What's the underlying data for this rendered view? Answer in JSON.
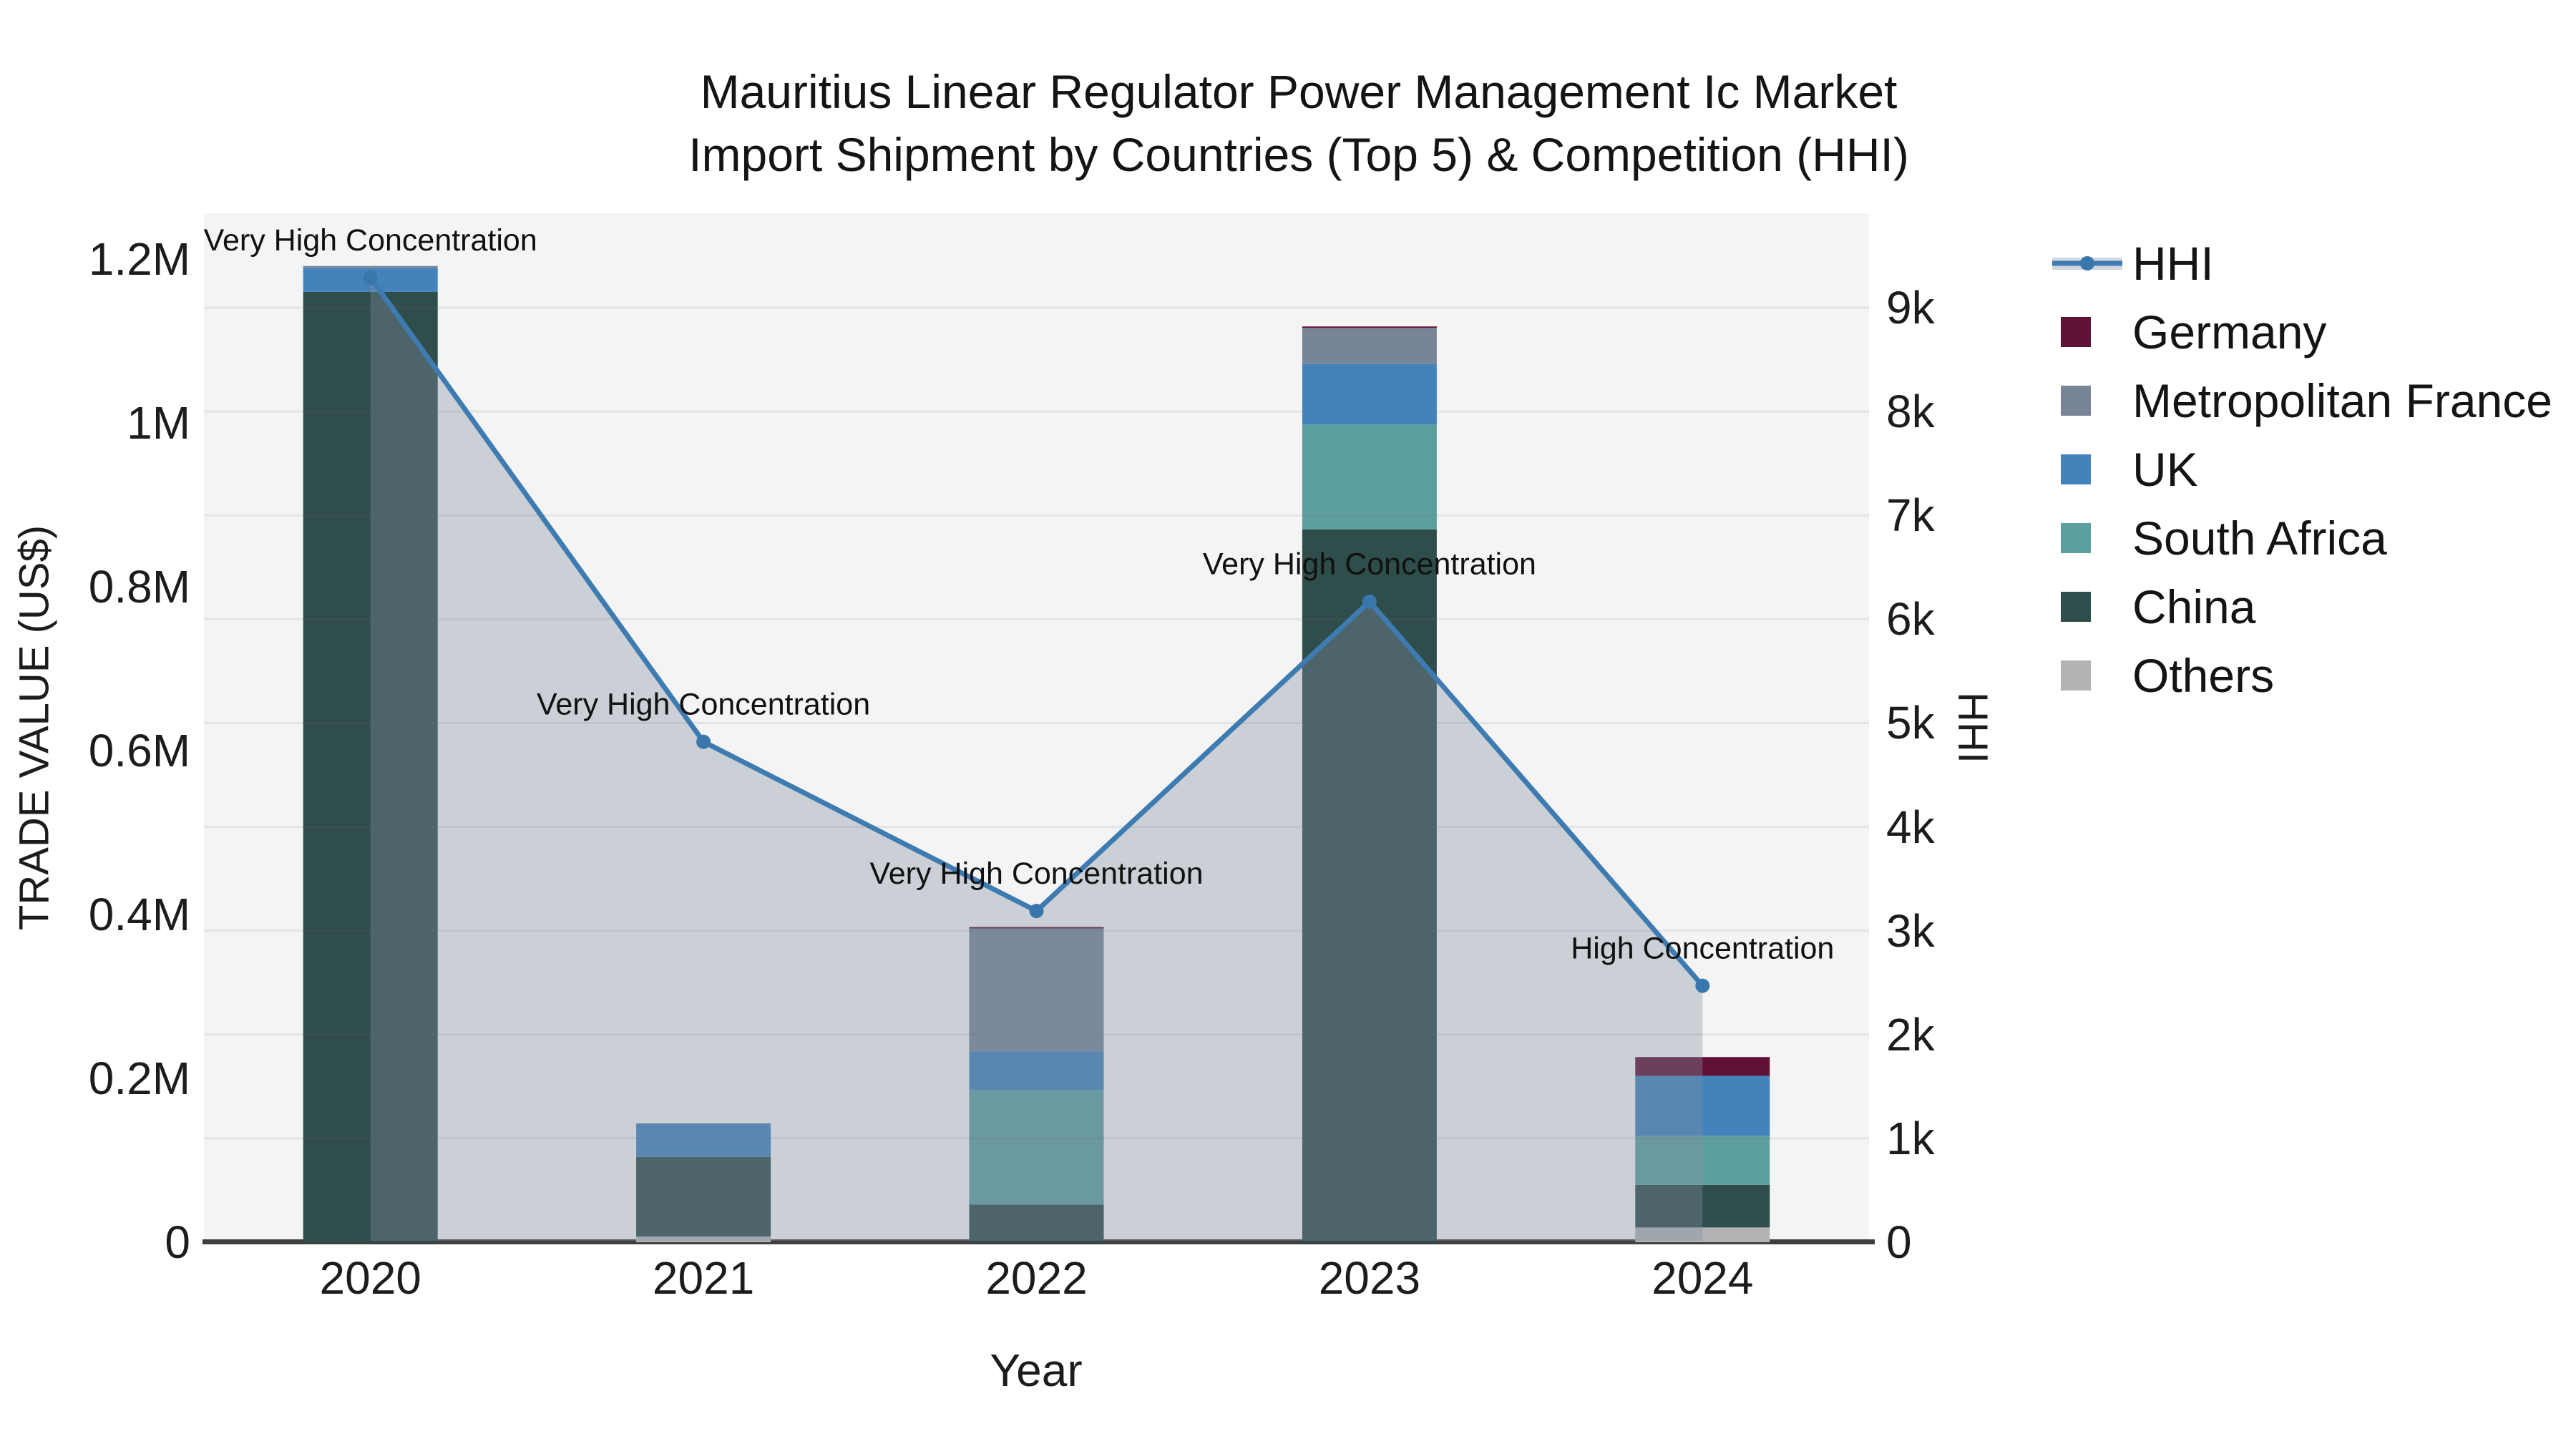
{
  "title": {
    "line1": "Mauritius Linear Regulator Power Management Ic Market",
    "line2": "Import Shipment by Countries (Top 5) & Competition (HHI)"
  },
  "axes": {
    "x_label": "Year",
    "y_left_label": "TRADE VALUE (US$)",
    "y_right_label": "HHI",
    "x_ticks": [
      "2020",
      "2021",
      "2022",
      "2023",
      "2024"
    ]
  },
  "legend": {
    "items": [
      {
        "label": "HHI",
        "type": "line-marker",
        "color": "#3e7bb1"
      },
      {
        "label": "Germany",
        "type": "swatch",
        "color": "#601236"
      },
      {
        "label": "Metropolitan France",
        "type": "swatch",
        "color": "#788596"
      },
      {
        "label": "UK",
        "type": "swatch",
        "color": "#4383bb"
      },
      {
        "label": "South Africa",
        "type": "swatch",
        "color": "#5d9f9e"
      },
      {
        "label": "China",
        "type": "swatch",
        "color": "#2f4d4a"
      },
      {
        "label": "Others",
        "type": "swatch",
        "color": "#b1b3b5"
      }
    ]
  },
  "chart_data": {
    "type": "bar",
    "subtype": "stacked bars (left axis, trade value) + line with markers and area fill (right axis, HHI)",
    "categories": [
      "2020",
      "2021",
      "2022",
      "2023",
      "2024"
    ],
    "series": [
      {
        "name": "Germany",
        "color": "#601236",
        "values": [
          0,
          0,
          1800,
          1800,
          23000
        ]
      },
      {
        "name": "Metropolitan France",
        "color": "#788596",
        "values": [
          2600,
          0,
          150000,
          44000,
          0
        ]
      },
      {
        "name": "UK",
        "color": "#4383bb",
        "values": [
          29000,
          41000,
          47000,
          74000,
          73000
        ]
      },
      {
        "name": "South Africa",
        "color": "#5d9f9e",
        "values": [
          0,
          0,
          140000,
          128000,
          60000
        ]
      },
      {
        "name": "China",
        "color": "#2f4d4a",
        "values": [
          1160000,
          97000,
          46000,
          870000,
          52000
        ]
      },
      {
        "name": "Others",
        "color": "#b1b3b5",
        "values": [
          0,
          7000,
          0,
          0,
          18000
        ]
      }
    ],
    "stack_order_bottom_to_top": [
      "Others",
      "China",
      "South Africa",
      "UK",
      "Metropolitan France",
      "Germany"
    ],
    "line_series": {
      "name": "HHI",
      "color": "#3e7bb1",
      "marker_color": "#3876ac",
      "area_color": "rgba(130,144,164,0.36)",
      "values": [
        9290,
        4820,
        3190,
        6170,
        2470
      ]
    },
    "point_annotations": [
      "Very High Concentration",
      "Very High Concentration",
      "Very High Concentration",
      "Very High Concentration",
      "High Concentration"
    ],
    "title": "Mauritius Linear Regulator Power Management Ic Market Import Shipment by Countries (Top 5) & Competition (HHI)",
    "xlabel": "Year",
    "ylabel": "TRADE VALUE (US$)",
    "y2label": "HHI",
    "ylim": [
      0,
      1256000
    ],
    "y2lim": [
      0,
      9910
    ],
    "yticks_left": {
      "values": [
        0,
        200000,
        400000,
        600000,
        800000,
        1000000,
        1200000
      ],
      "labels": [
        "0",
        "0.2M",
        "0.4M",
        "0.6M",
        "0.8M",
        "1M",
        "1.2M"
      ]
    },
    "yticks_right": {
      "values": [
        0,
        1000,
        2000,
        3000,
        4000,
        5000,
        6000,
        7000,
        8000,
        9000
      ],
      "labels": [
        "0",
        "1k",
        "2k",
        "3k",
        "4k",
        "5k",
        "6k",
        "7k",
        "8k",
        "9k"
      ]
    },
    "grid": "faint horizontal gridlines",
    "legend_position": "right",
    "plot_background": "#f4f4f4"
  }
}
